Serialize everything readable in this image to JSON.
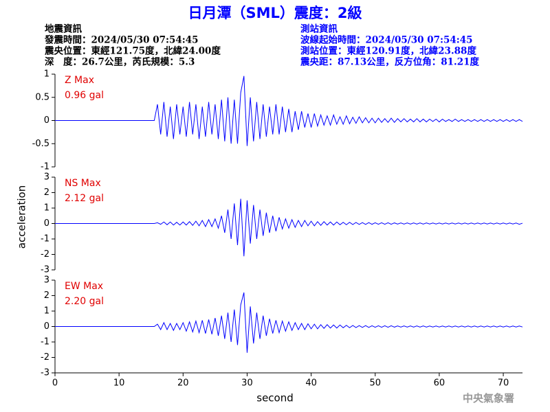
{
  "header": {
    "title": "日月潭（SML）震度：2級",
    "left": [
      "地震資訊",
      "發震時間：2024/05/30 07:54:45",
      "震央位置：東經121.75度，北緯24.00度",
      "深　度：26.7公里，芮氏規模：5.3"
    ],
    "right": [
      "測站資訊",
      "波線起始時間：2024/05/30 07:54:45",
      "測站位置：東經120.91度，北緯23.88度",
      "震央距：87.13公里，反方位角：81.21度"
    ]
  },
  "ylabel": "acceleration",
  "footer": "中央氣象署",
  "chart_data": [
    {
      "type": "line",
      "annotation": "Z Max",
      "max_label": "0.96 gal",
      "annotation_color": "#e00000",
      "xlim": [
        0,
        73
      ],
      "ylim": [
        -1,
        1
      ],
      "yticks": [
        -1,
        -0.5,
        0,
        0.5,
        1
      ],
      "x": [
        0,
        15.5,
        16,
        16.5,
        17,
        17.5,
        18,
        18.5,
        19,
        19.5,
        20,
        20.5,
        21,
        21.5,
        22,
        22.5,
        23,
        23.5,
        24,
        24.5,
        25,
        25.5,
        26,
        26.5,
        27,
        27.5,
        28,
        28.5,
        29,
        29.5,
        30,
        30.5,
        31,
        31.5,
        32,
        32.5,
        33,
        33.5,
        34,
        34.5,
        35,
        35.5,
        36,
        36.5,
        37,
        37.5,
        38,
        38.5,
        39,
        39.5,
        40,
        40.5,
        41,
        41.5,
        42,
        42.5,
        43,
        43.5,
        44,
        44.5,
        45,
        45.5,
        46,
        46.5,
        47,
        47.5,
        48,
        48.5,
        49,
        49.5,
        50,
        50.5,
        51,
        51.5,
        52,
        52.5,
        53,
        53.5,
        54,
        54.5,
        55,
        55.5,
        56,
        56.5,
        57,
        57.5,
        58,
        58.5,
        59,
        59.5,
        60,
        60.5,
        61,
        61.5,
        62,
        62.5,
        63,
        63.5,
        64,
        64.5,
        65,
        65.5,
        66,
        66.5,
        67,
        67.5,
        68,
        68.5,
        69,
        69.5,
        70,
        70.5,
        71,
        71.5,
        72,
        72.5,
        73
      ],
      "series": [
        {
          "color": "#0000ff",
          "values": [
            0,
            0,
            0.35,
            -0.3,
            0.4,
            -0.35,
            0.3,
            -0.4,
            0.35,
            -0.3,
            0.3,
            -0.35,
            0.4,
            -0.3,
            0.35,
            -0.4,
            0.3,
            -0.35,
            0.4,
            -0.3,
            0.35,
            -0.4,
            0.45,
            -0.45,
            0.5,
            -0.5,
            0.45,
            -0.5,
            0.6,
            0.96,
            -0.55,
            0.5,
            -0.45,
            0.4,
            -0.4,
            0.35,
            -0.35,
            0.3,
            -0.3,
            0.35,
            -0.3,
            0.3,
            -0.25,
            0.25,
            -0.25,
            0.2,
            -0.2,
            0.2,
            -0.15,
            0.15,
            -0.15,
            0.15,
            -0.12,
            0.12,
            -0.1,
            0.1,
            -0.1,
            0.12,
            -0.08,
            0.08,
            -0.08,
            0.1,
            -0.07,
            0.07,
            -0.06,
            0.08,
            -0.05,
            0.06,
            -0.05,
            0.05,
            -0.05,
            0.05,
            -0.04,
            0.04,
            -0.04,
            0.05,
            -0.04,
            0.04,
            -0.03,
            0.04,
            -0.03,
            0.03,
            -0.03,
            0.04,
            -0.03,
            0.03,
            -0.03,
            0.03,
            -0.02,
            0.03,
            -0.03,
            0.03,
            -0.02,
            0.02,
            -0.02,
            0.03,
            -0.02,
            0.02,
            -0.02,
            0.02,
            -0.02,
            0.02,
            -0.02,
            0.02,
            -0.02,
            0.02,
            -0.02,
            0.02,
            -0.02,
            0.02,
            -0.02,
            0.02,
            -0.02,
            0.02,
            -0.02,
            0.02,
            -0.02
          ]
        }
      ]
    },
    {
      "type": "line",
      "annotation": "NS Max",
      "max_label": "2.12 gal",
      "annotation_color": "#e00000",
      "xlim": [
        0,
        73
      ],
      "ylim": [
        -3,
        3
      ],
      "yticks": [
        -3,
        -2,
        -1,
        0,
        1,
        2,
        3
      ],
      "x": [
        0,
        15.5,
        16,
        16.5,
        17,
        17.5,
        18,
        18.5,
        19,
        19.5,
        20,
        20.5,
        21,
        21.5,
        22,
        22.5,
        23,
        23.5,
        24,
        24.5,
        25,
        25.5,
        26,
        26.5,
        27,
        27.5,
        28,
        28.5,
        29,
        29.5,
        30,
        30.5,
        31,
        31.5,
        32,
        32.5,
        33,
        33.5,
        34,
        34.5,
        35,
        35.5,
        36,
        36.5,
        37,
        37.5,
        38,
        38.5,
        39,
        39.5,
        40,
        40.5,
        41,
        41.5,
        42,
        42.5,
        43,
        43.5,
        44,
        44.5,
        45,
        45.5,
        46,
        46.5,
        47,
        47.5,
        48,
        48.5,
        49,
        49.5,
        50,
        50.5,
        51,
        51.5,
        52,
        52.5,
        53,
        53.5,
        54,
        54.5,
        55,
        55.5,
        56,
        56.5,
        57,
        57.5,
        58,
        58.5,
        59,
        59.5,
        60,
        60.5,
        61,
        61.5,
        62,
        62.5,
        63,
        63.5,
        64,
        64.5,
        65,
        65.5,
        66,
        66.5,
        67,
        67.5,
        68,
        68.5,
        69,
        69.5,
        70,
        70.5,
        71,
        71.5,
        72,
        72.5,
        73
      ],
      "series": [
        {
          "color": "#0000ff",
          "values": [
            0,
            0,
            0.05,
            -0.05,
            0.1,
            -0.08,
            0.1,
            -0.1,
            0.08,
            -0.1,
            0.1,
            -0.1,
            0.12,
            -0.12,
            0.15,
            -0.15,
            0.2,
            -0.2,
            0.25,
            -0.2,
            0.3,
            -0.3,
            0.5,
            -0.6,
            0.9,
            -1.0,
            1.3,
            -1.4,
            1.6,
            -2.12,
            1.5,
            -1.3,
            1.2,
            -1.0,
            0.9,
            -0.8,
            0.7,
            -0.6,
            0.5,
            -0.5,
            0.4,
            -0.35,
            0.3,
            -0.3,
            0.25,
            -0.25,
            0.2,
            -0.2,
            0.2,
            -0.15,
            0.15,
            -0.15,
            0.12,
            -0.12,
            0.12,
            -0.1,
            0.1,
            -0.1,
            0.1,
            -0.08,
            0.08,
            -0.08,
            0.08,
            -0.07,
            0.07,
            -0.06,
            0.06,
            -0.06,
            0.06,
            -0.05,
            0.05,
            -0.05,
            0.05,
            -0.05,
            0.05,
            -0.05,
            0.04,
            -0.04,
            0.04,
            -0.04,
            0.04,
            -0.04,
            0.04,
            -0.04,
            0.04,
            -0.04,
            0.04,
            -0.03,
            0.03,
            -0.03,
            0.03,
            -0.03,
            0.03,
            -0.03,
            0.03,
            -0.03,
            0.03,
            -0.03,
            0.03,
            -0.03,
            0.03,
            -0.03,
            0.03,
            -0.03,
            0.03,
            -0.03,
            0.03,
            -0.03,
            0.03,
            -0.03,
            0.03,
            -0.03,
            0.03,
            -0.03,
            0.03,
            -0.05,
            0.02
          ]
        }
      ]
    },
    {
      "type": "line",
      "annotation": "EW Max",
      "max_label": "2.20 gal",
      "annotation_color": "#e00000",
      "xlim": [
        0,
        73
      ],
      "ylim": [
        -3,
        3
      ],
      "yticks": [
        -3,
        -2,
        -1,
        0,
        1,
        2,
        3
      ],
      "xticks": [
        0,
        10,
        20,
        30,
        40,
        50,
        60,
        70
      ],
      "xlabel": "second",
      "x": [
        0,
        15.5,
        16,
        16.5,
        17,
        17.5,
        18,
        18.5,
        19,
        19.5,
        20,
        20.5,
        21,
        21.5,
        22,
        22.5,
        23,
        23.5,
        24,
        24.5,
        25,
        25.5,
        26,
        26.5,
        27,
        27.5,
        28,
        28.5,
        29,
        29.5,
        30,
        30.5,
        31,
        31.5,
        32,
        32.5,
        33,
        33.5,
        34,
        34.5,
        35,
        35.5,
        36,
        36.5,
        37,
        37.5,
        38,
        38.5,
        39,
        39.5,
        40,
        40.5,
        41,
        41.5,
        42,
        42.5,
        43,
        43.5,
        44,
        44.5,
        45,
        45.5,
        46,
        46.5,
        47,
        47.5,
        48,
        48.5,
        49,
        49.5,
        50,
        50.5,
        51,
        51.5,
        52,
        52.5,
        53,
        53.5,
        54,
        54.5,
        55,
        55.5,
        56,
        56.5,
        57,
        57.5,
        58,
        58.5,
        59,
        59.5,
        60,
        60.5,
        61,
        61.5,
        62,
        62.5,
        63,
        63.5,
        64,
        64.5,
        65,
        65.5,
        66,
        66.5,
        67,
        67.5,
        68,
        68.5,
        69,
        69.5,
        70,
        70.5,
        71,
        71.5,
        72,
        72.5,
        73
      ],
      "series": [
        {
          "color": "#0000ff",
          "values": [
            0,
            0,
            0.15,
            -0.2,
            0.25,
            -0.2,
            0.2,
            -0.25,
            0.2,
            -0.2,
            0.25,
            -0.3,
            0.3,
            -0.35,
            0.35,
            -0.4,
            0.4,
            -0.45,
            0.45,
            -0.5,
            0.55,
            -0.6,
            0.7,
            -0.8,
            0.9,
            -1.0,
            1.1,
            -1.2,
            1.4,
            2.2,
            -1.7,
            1.3,
            -1.1,
            0.9,
            -0.8,
            0.7,
            -0.6,
            0.5,
            -0.45,
            0.4,
            -0.4,
            0.35,
            -0.3,
            0.3,
            -0.25,
            0.25,
            -0.2,
            0.2,
            -0.2,
            0.18,
            -0.15,
            0.15,
            -0.15,
            0.12,
            -0.12,
            0.12,
            -0.1,
            0.1,
            -0.1,
            0.1,
            -0.08,
            0.08,
            -0.08,
            0.07,
            -0.07,
            0.06,
            -0.06,
            0.06,
            -0.06,
            0.05,
            -0.05,
            0.05,
            -0.05,
            0.05,
            -0.05,
            0.05,
            -0.04,
            0.04,
            -0.04,
            0.04,
            -0.04,
            0.04,
            -0.04,
            0.04,
            -0.04,
            0.04,
            -0.04,
            0.03,
            -0.03,
            0.03,
            -0.03,
            0.03,
            -0.03,
            0.03,
            -0.03,
            0.03,
            -0.03,
            0.03,
            -0.03,
            0.03,
            -0.03,
            0.03,
            -0.03,
            0.03,
            -0.03,
            0.03,
            -0.03,
            0.03,
            -0.03,
            0.03,
            -0.03,
            0.03,
            -0.03,
            0.03,
            -0.03,
            0.03,
            -0.03
          ]
        }
      ]
    }
  ]
}
